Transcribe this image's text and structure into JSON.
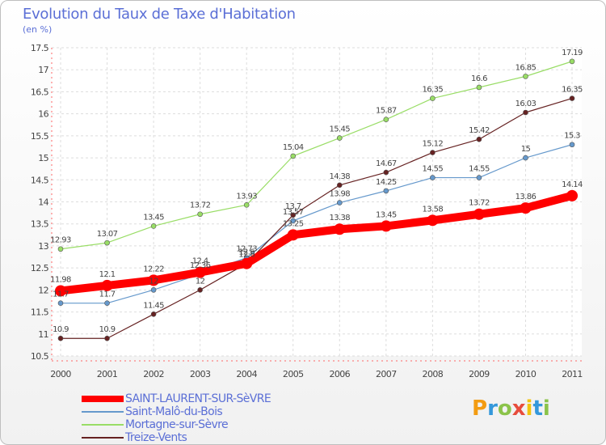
{
  "chart_data": {
    "type": "line",
    "title": "Evolution du Taux de Taxe d'Habitation",
    "subtitle": "(en %)",
    "xlabel": "",
    "ylabel": "",
    "x": [
      "2000",
      "2001",
      "2002",
      "2003",
      "2004",
      "2005",
      "2006",
      "2007",
      "2008",
      "2009",
      "2010",
      "2011"
    ],
    "ylim": [
      10.5,
      17.5
    ],
    "yticks": [
      "10.5",
      "11",
      "11.5",
      "12",
      "12.5",
      "13",
      "13.5",
      "14",
      "14.5",
      "15",
      "15.5",
      "16",
      "16.5",
      "17",
      "17.5"
    ],
    "grid": true,
    "legend_position": "bottom-left",
    "series": [
      {
        "name": "SAINT-LAURENT-SUR-SèVRE",
        "color": "#ff0000",
        "values": [
          11.98,
          12.1,
          12.22,
          12.4,
          12.6,
          13.25,
          13.38,
          13.45,
          13.58,
          13.72,
          13.86,
          14.14
        ],
        "labels": [
          "11.98",
          "12.1",
          "12.22",
          "12.4",
          "12.6",
          "13.25",
          "13.38",
          "13.45",
          "13.58",
          "13.72",
          "13.86",
          "14.14"
        ]
      },
      {
        "name": "Saint-Malô-du-Bois",
        "color": "#6699cc",
        "values": [
          11.7,
          11.7,
          12.0,
          12.36,
          12.73,
          13.57,
          13.98,
          14.25,
          14.55,
          14.55,
          15.0,
          15.3
        ],
        "labels": [
          "11.7",
          "11.7",
          "12",
          "12.36",
          "12.73",
          "13.57",
          "13.98",
          "14.25",
          "14.55",
          "14.55",
          "15",
          "15.3"
        ]
      },
      {
        "name": "Mortagne-sur-Sèvre",
        "color": "#99dd66",
        "values": [
          12.93,
          13.07,
          13.45,
          13.72,
          13.93,
          15.04,
          15.45,
          15.87,
          16.35,
          16.6,
          16.85,
          17.19
        ],
        "labels": [
          "12.93",
          "13.07",
          "13.45",
          "13.72",
          "13.93",
          "15.04",
          "15.45",
          "15.87",
          "16.35",
          "16.6",
          "16.85",
          "17.19"
        ]
      },
      {
        "name": "Treize-Vents",
        "color": "#662222",
        "values": [
          10.9,
          10.9,
          11.45,
          12.0,
          12.6,
          13.7,
          14.38,
          14.67,
          15.12,
          15.42,
          16.03,
          16.35
        ],
        "labels": [
          "10.9",
          "10.9",
          "11.45",
          "12",
          "12.6",
          "13.7",
          "14.38",
          "14.67",
          "15.12",
          "15.42",
          "16.03",
          "16.35"
        ]
      }
    ]
  },
  "logo": {
    "text": "Proxiti",
    "letters": [
      "P",
      "r",
      "o",
      "x",
      "i",
      "t",
      "i"
    ],
    "colors": [
      "#f39c12",
      "#3498db",
      "#8bc34a",
      "#e74c3c",
      "#f1c40f",
      "#3498db",
      "#8bc34a"
    ]
  }
}
